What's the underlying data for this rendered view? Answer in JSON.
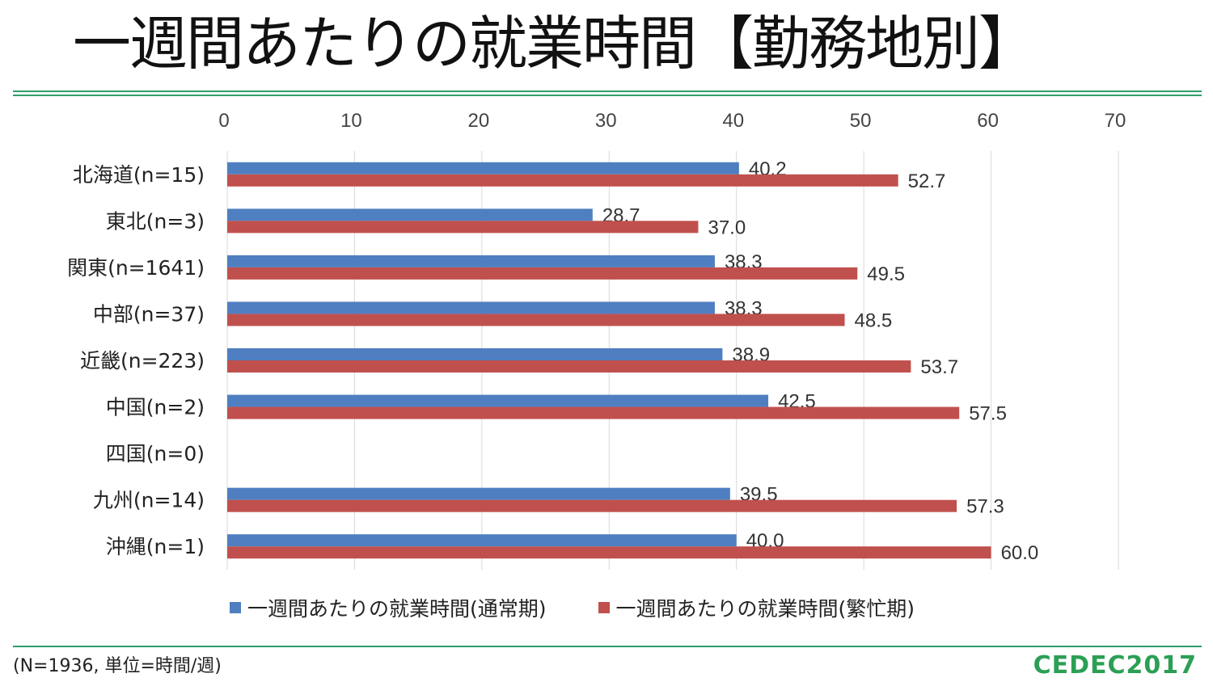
{
  "title": "一週間あたりの就業時間【勤務地別】",
  "note": "(N=1936, 単位=時間/週)",
  "logo": "CEDEC2017",
  "colors": {
    "accent": "#2e9e6a",
    "series_normal": "#4f7fc1",
    "series_busy": "#c0504d",
    "grid": "#d9d9d9"
  },
  "chart_data": {
    "type": "bar",
    "orientation": "horizontal",
    "title": "一週間あたりの就業時間【勤務地別】",
    "xlabel": "",
    "ylabel": "",
    "xlim": [
      0,
      70
    ],
    "xticks": [
      0,
      10,
      20,
      30,
      40,
      50,
      60,
      70
    ],
    "grid": true,
    "legend_position": "bottom",
    "categories": [
      "北海道(n=15)",
      "東北(n=3)",
      "関東(n=1641)",
      "中部(n=37)",
      "近畿(n=223)",
      "中国(n=2)",
      "四国(n=0)",
      "九州(n=14)",
      "沖縄(n=1)"
    ],
    "series": [
      {
        "name": "一週間あたりの就業時間(通常期)",
        "color": "#4f7fc1",
        "values": [
          40.2,
          28.7,
          38.3,
          38.3,
          38.9,
          42.5,
          null,
          39.5,
          40.0
        ],
        "labels": [
          "40.2",
          "28.7",
          "38.3",
          "38.3",
          "38.9",
          "42.5",
          "",
          "39.5",
          "40.0"
        ]
      },
      {
        "name": "一週間あたりの就業時間(繁忙期)",
        "color": "#c0504d",
        "values": [
          52.7,
          37.0,
          49.5,
          48.5,
          53.7,
          57.5,
          null,
          57.3,
          60.0
        ],
        "labels": [
          "52.7",
          "37.0",
          "49.5",
          "48.5",
          "53.7",
          "57.5",
          "",
          "57.3",
          "60.0"
        ]
      }
    ]
  }
}
